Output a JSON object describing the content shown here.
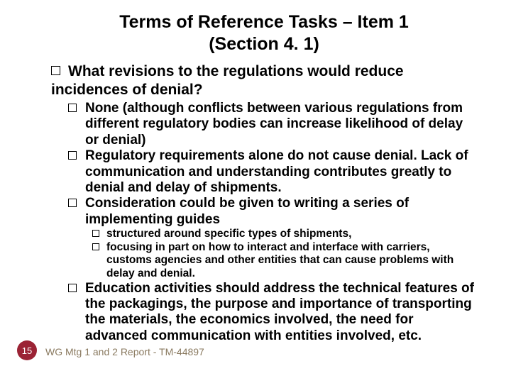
{
  "title_line1": "Terms of Reference Tasks – Item 1",
  "title_line2": "(Section 4. 1)",
  "l1_1a": "What revisions to the regulations would reduce",
  "l1_1b": "incidences of denial?",
  "l2_1": "None (although conflicts between various regulations from different regulatory bodies can increase likelihood of delay or denial)",
  "l2_2": "Regulatory requirements alone do not cause denial. Lack of communication and understanding contributes greatly to denial and delay of shipments.",
  "l2_3": "Consideration could be given to writing a series of implementing guides",
  "l3_1": "structured around specific types of shipments,",
  "l3_2": "focusing in part on how to interact and interface with carriers, customs agencies and other entities that can cause problems with delay and denial.",
  "l2_4": "Education activities should address the technical features of the packagings, the purpose and importance of transporting the materials, the economics involved, the need for advanced communication with entities involved, etc.",
  "page_number": "15",
  "footer": "WG Mtg 1 and 2 Report - TM-44897",
  "colors": {
    "badge_bg": "#9b2335",
    "badge_fg": "#ffffff",
    "footer_fg": "#8a7a60",
    "text": "#000000",
    "bg": "#ffffff"
  },
  "fonts": {
    "title_size_pt": 19,
    "l1_size_pt": 16,
    "l2_size_pt": 14,
    "l3_size_pt": 12,
    "footer_size_pt": 10
  }
}
